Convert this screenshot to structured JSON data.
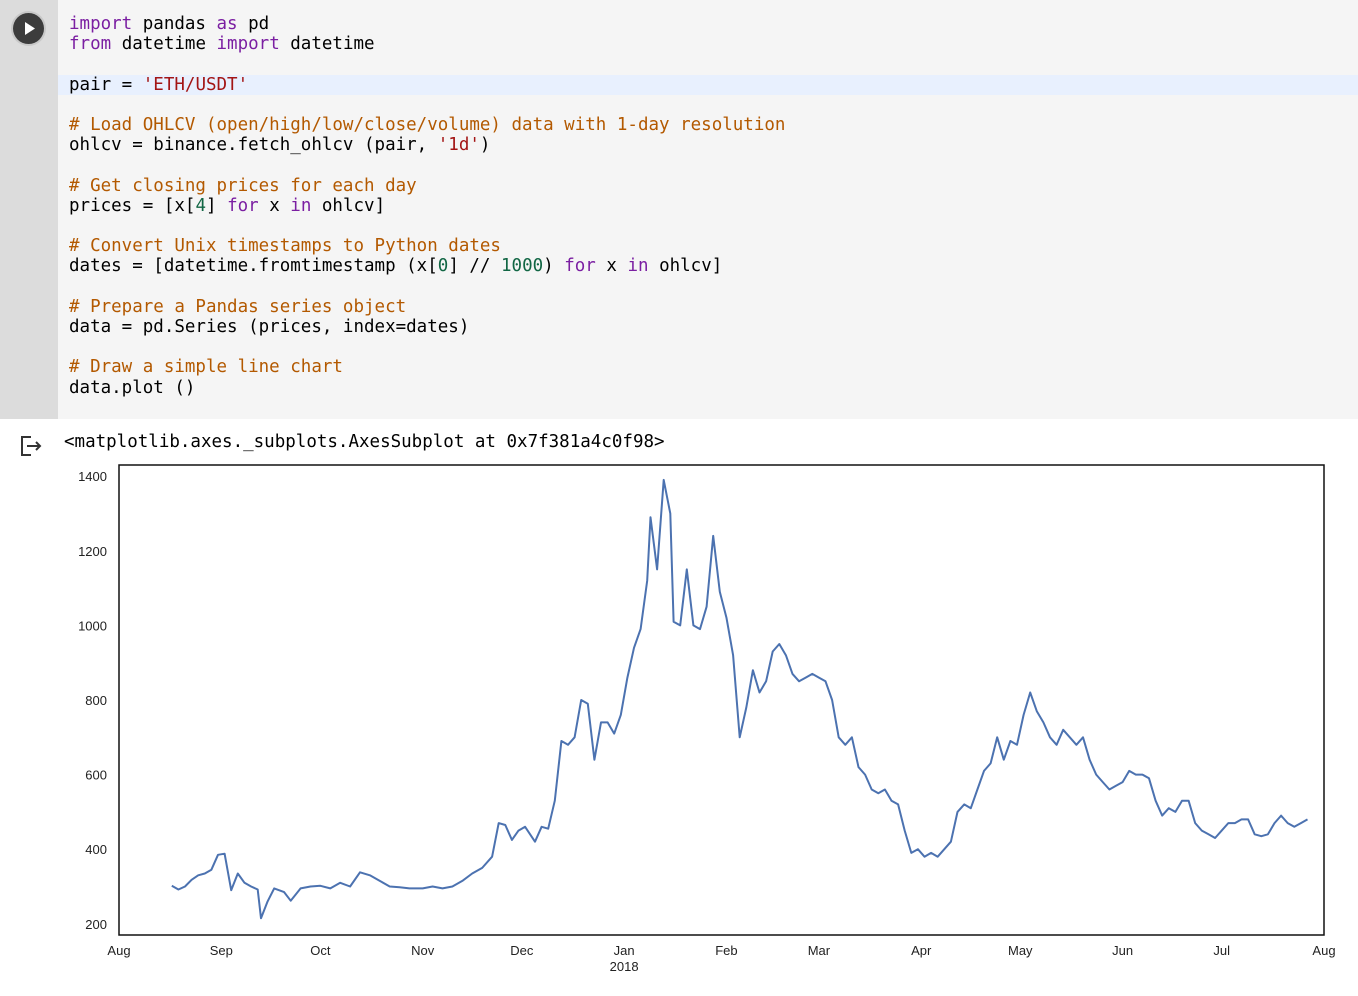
{
  "cell": {
    "run_button": "play-icon",
    "code": [
      [
        {
          "t": "import",
          "c": "kw"
        },
        {
          "t": " pandas "
        },
        {
          "t": "as",
          "c": "kw"
        },
        {
          "t": " pd"
        }
      ],
      [
        {
          "t": "from",
          "c": "kw"
        },
        {
          "t": " datetime "
        },
        {
          "t": "import",
          "c": "kw"
        },
        {
          "t": " datetime"
        }
      ],
      [],
      [
        {
          "t": "pair = "
        },
        {
          "t": "'ETH/USDT'",
          "c": "str"
        }
      ],
      [],
      [
        {
          "t": "# Load OHLCV (open/high/low/close/volume) data with 1-day resolution",
          "c": "cm"
        }
      ],
      [
        {
          "t": "ohlcv = binance.fetch_ohlcv (pair, "
        },
        {
          "t": "'1d'",
          "c": "str"
        },
        {
          "t": ")"
        }
      ],
      [],
      [
        {
          "t": "# Get closing prices for each day",
          "c": "cm"
        }
      ],
      [
        {
          "t": "prices = [x["
        },
        {
          "t": "4",
          "c": "num"
        },
        {
          "t": "] "
        },
        {
          "t": "for",
          "c": "kw"
        },
        {
          "t": " x "
        },
        {
          "t": "in",
          "c": "kw"
        },
        {
          "t": " ohlcv]"
        }
      ],
      [],
      [
        {
          "t": "# Convert Unix timestamps to Python dates",
          "c": "cm"
        }
      ],
      [
        {
          "t": "dates = [datetime.fromtimestamp (x["
        },
        {
          "t": "0",
          "c": "num"
        },
        {
          "t": "] // "
        },
        {
          "t": "1000",
          "c": "num"
        },
        {
          "t": ") "
        },
        {
          "t": "for",
          "c": "kw"
        },
        {
          "t": " x "
        },
        {
          "t": "in",
          "c": "kw"
        },
        {
          "t": " ohlcv]"
        }
      ],
      [],
      [
        {
          "t": "# Prepare a Pandas series object",
          "c": "cm"
        }
      ],
      [
        {
          "t": "data = pd.Series (prices, index=dates)"
        }
      ],
      [],
      [
        {
          "t": "# Draw a simple line chart",
          "c": "cm"
        }
      ],
      [
        {
          "t": "data.plot ()"
        }
      ]
    ]
  },
  "output": {
    "icon": "output-arrow-icon",
    "text": "<matplotlib.axes._subplots.AxesSubplot at 0x7f381a4c0f98>"
  },
  "colors": {
    "line": "#4c72b0",
    "keyword": "#7b1fa2",
    "string": "#a31515",
    "comment": "#b35900",
    "number": "#116644"
  },
  "chart_data": {
    "type": "line",
    "title": "",
    "xlabel": "",
    "ylabel": "",
    "ylim": [
      170,
      1430
    ],
    "xlim": [
      "2017-08-01",
      "2018-08-01"
    ],
    "yticks": [
      200,
      400,
      600,
      800,
      1000,
      1200,
      1400
    ],
    "xticks": [
      {
        "date": "2017-08-01",
        "label": "Aug"
      },
      {
        "date": "2017-09-01",
        "label": "Sep"
      },
      {
        "date": "2017-10-01",
        "label": "Oct"
      },
      {
        "date": "2017-11-01",
        "label": "Nov"
      },
      {
        "date": "2017-12-01",
        "label": "Dec"
      },
      {
        "date": "2018-01-01",
        "label": "Jan",
        "sublabel": "2018"
      },
      {
        "date": "2018-02-01",
        "label": "Feb"
      },
      {
        "date": "2018-03-01",
        "label": "Mar"
      },
      {
        "date": "2018-04-01",
        "label": "Apr"
      },
      {
        "date": "2018-05-01",
        "label": "May"
      },
      {
        "date": "2018-06-01",
        "label": "Jun"
      },
      {
        "date": "2018-07-01",
        "label": "Jul"
      },
      {
        "date": "2018-08-01",
        "label": "Aug"
      }
    ],
    "grid": false,
    "series": [
      {
        "points": [
          [
            "2017-08-17",
            302
          ],
          [
            "2017-08-19",
            292
          ],
          [
            "2017-08-21",
            300
          ],
          [
            "2017-08-23",
            318
          ],
          [
            "2017-08-25",
            330
          ],
          [
            "2017-08-27",
            335
          ],
          [
            "2017-08-29",
            345
          ],
          [
            "2017-08-31",
            385
          ],
          [
            "2017-09-02",
            388
          ],
          [
            "2017-09-04",
            290
          ],
          [
            "2017-09-06",
            335
          ],
          [
            "2017-09-08",
            310
          ],
          [
            "2017-09-10",
            300
          ],
          [
            "2017-09-12",
            292
          ],
          [
            "2017-09-13",
            215
          ],
          [
            "2017-09-15",
            260
          ],
          [
            "2017-09-17",
            295
          ],
          [
            "2017-09-20",
            285
          ],
          [
            "2017-09-22",
            262
          ],
          [
            "2017-09-25",
            295
          ],
          [
            "2017-09-28",
            300
          ],
          [
            "2017-10-01",
            302
          ],
          [
            "2017-10-04",
            295
          ],
          [
            "2017-10-07",
            310
          ],
          [
            "2017-10-10",
            300
          ],
          [
            "2017-10-13",
            338
          ],
          [
            "2017-10-16",
            330
          ],
          [
            "2017-10-19",
            315
          ],
          [
            "2017-10-22",
            300
          ],
          [
            "2017-10-25",
            298
          ],
          [
            "2017-10-28",
            295
          ],
          [
            "2017-11-01",
            295
          ],
          [
            "2017-11-04",
            300
          ],
          [
            "2017-11-07",
            295
          ],
          [
            "2017-11-10",
            300
          ],
          [
            "2017-11-13",
            315
          ],
          [
            "2017-11-16",
            335
          ],
          [
            "2017-11-19",
            350
          ],
          [
            "2017-11-22",
            380
          ],
          [
            "2017-11-24",
            470
          ],
          [
            "2017-11-26",
            465
          ],
          [
            "2017-11-28",
            425
          ],
          [
            "2017-11-30",
            450
          ],
          [
            "2017-12-02",
            460
          ],
          [
            "2017-12-05",
            420
          ],
          [
            "2017-12-07",
            460
          ],
          [
            "2017-12-09",
            455
          ],
          [
            "2017-12-11",
            530
          ],
          [
            "2017-12-13",
            690
          ],
          [
            "2017-12-15",
            680
          ],
          [
            "2017-12-17",
            700
          ],
          [
            "2017-12-19",
            800
          ],
          [
            "2017-12-21",
            790
          ],
          [
            "2017-12-23",
            640
          ],
          [
            "2017-12-25",
            740
          ],
          [
            "2017-12-27",
            740
          ],
          [
            "2017-12-29",
            710
          ],
          [
            "2017-12-31",
            760
          ],
          [
            "2018-01-02",
            860
          ],
          [
            "2018-01-04",
            940
          ],
          [
            "2018-01-06",
            990
          ],
          [
            "2018-01-08",
            1120
          ],
          [
            "2018-01-09",
            1290
          ],
          [
            "2018-01-11",
            1150
          ],
          [
            "2018-01-13",
            1390
          ],
          [
            "2018-01-15",
            1300
          ],
          [
            "2018-01-16",
            1010
          ],
          [
            "2018-01-18",
            1000
          ],
          [
            "2018-01-20",
            1150
          ],
          [
            "2018-01-22",
            1000
          ],
          [
            "2018-01-24",
            990
          ],
          [
            "2018-01-26",
            1050
          ],
          [
            "2018-01-28",
            1240
          ],
          [
            "2018-01-30",
            1090
          ],
          [
            "2018-02-01",
            1020
          ],
          [
            "2018-02-03",
            920
          ],
          [
            "2018-02-05",
            700
          ],
          [
            "2018-02-07",
            780
          ],
          [
            "2018-02-09",
            880
          ],
          [
            "2018-02-11",
            820
          ],
          [
            "2018-02-13",
            850
          ],
          [
            "2018-02-15",
            930
          ],
          [
            "2018-02-17",
            950
          ],
          [
            "2018-02-19",
            920
          ],
          [
            "2018-02-21",
            870
          ],
          [
            "2018-02-23",
            850
          ],
          [
            "2018-02-25",
            860
          ],
          [
            "2018-02-27",
            870
          ],
          [
            "2018-03-01",
            860
          ],
          [
            "2018-03-03",
            850
          ],
          [
            "2018-03-05",
            800
          ],
          [
            "2018-03-07",
            700
          ],
          [
            "2018-03-09",
            680
          ],
          [
            "2018-03-11",
            700
          ],
          [
            "2018-03-13",
            620
          ],
          [
            "2018-03-15",
            600
          ],
          [
            "2018-03-17",
            560
          ],
          [
            "2018-03-19",
            550
          ],
          [
            "2018-03-21",
            560
          ],
          [
            "2018-03-23",
            530
          ],
          [
            "2018-03-25",
            520
          ],
          [
            "2018-03-27",
            450
          ],
          [
            "2018-03-29",
            390
          ],
          [
            "2018-03-31",
            400
          ],
          [
            "2018-04-02",
            380
          ],
          [
            "2018-04-04",
            390
          ],
          [
            "2018-04-06",
            380
          ],
          [
            "2018-04-08",
            400
          ],
          [
            "2018-04-10",
            420
          ],
          [
            "2018-04-12",
            500
          ],
          [
            "2018-04-14",
            520
          ],
          [
            "2018-04-16",
            510
          ],
          [
            "2018-04-18",
            560
          ],
          [
            "2018-04-20",
            610
          ],
          [
            "2018-04-22",
            630
          ],
          [
            "2018-04-24",
            700
          ],
          [
            "2018-04-26",
            640
          ],
          [
            "2018-04-28",
            690
          ],
          [
            "2018-04-30",
            680
          ],
          [
            "2018-05-02",
            760
          ],
          [
            "2018-05-04",
            820
          ],
          [
            "2018-05-06",
            770
          ],
          [
            "2018-05-08",
            740
          ],
          [
            "2018-05-10",
            700
          ],
          [
            "2018-05-12",
            680
          ],
          [
            "2018-05-14",
            720
          ],
          [
            "2018-05-16",
            700
          ],
          [
            "2018-05-18",
            680
          ],
          [
            "2018-05-20",
            700
          ],
          [
            "2018-05-22",
            640
          ],
          [
            "2018-05-24",
            600
          ],
          [
            "2018-05-26",
            580
          ],
          [
            "2018-05-28",
            560
          ],
          [
            "2018-05-30",
            570
          ],
          [
            "2018-06-01",
            580
          ],
          [
            "2018-06-03",
            610
          ],
          [
            "2018-06-05",
            600
          ],
          [
            "2018-06-07",
            600
          ],
          [
            "2018-06-09",
            590
          ],
          [
            "2018-06-11",
            530
          ],
          [
            "2018-06-13",
            490
          ],
          [
            "2018-06-15",
            510
          ],
          [
            "2018-06-17",
            500
          ],
          [
            "2018-06-19",
            530
          ],
          [
            "2018-06-21",
            530
          ],
          [
            "2018-06-23",
            470
          ],
          [
            "2018-06-25",
            450
          ],
          [
            "2018-06-27",
            440
          ],
          [
            "2018-06-29",
            430
          ],
          [
            "2018-07-01",
            450
          ],
          [
            "2018-07-03",
            470
          ],
          [
            "2018-07-05",
            470
          ],
          [
            "2018-07-07",
            480
          ],
          [
            "2018-07-09",
            480
          ],
          [
            "2018-07-11",
            440
          ],
          [
            "2018-07-13",
            435
          ],
          [
            "2018-07-15",
            440
          ],
          [
            "2018-07-17",
            470
          ],
          [
            "2018-07-19",
            490
          ],
          [
            "2018-07-21",
            470
          ],
          [
            "2018-07-23",
            460
          ],
          [
            "2018-07-25",
            470
          ],
          [
            "2018-07-27",
            480
          ]
        ]
      }
    ]
  }
}
